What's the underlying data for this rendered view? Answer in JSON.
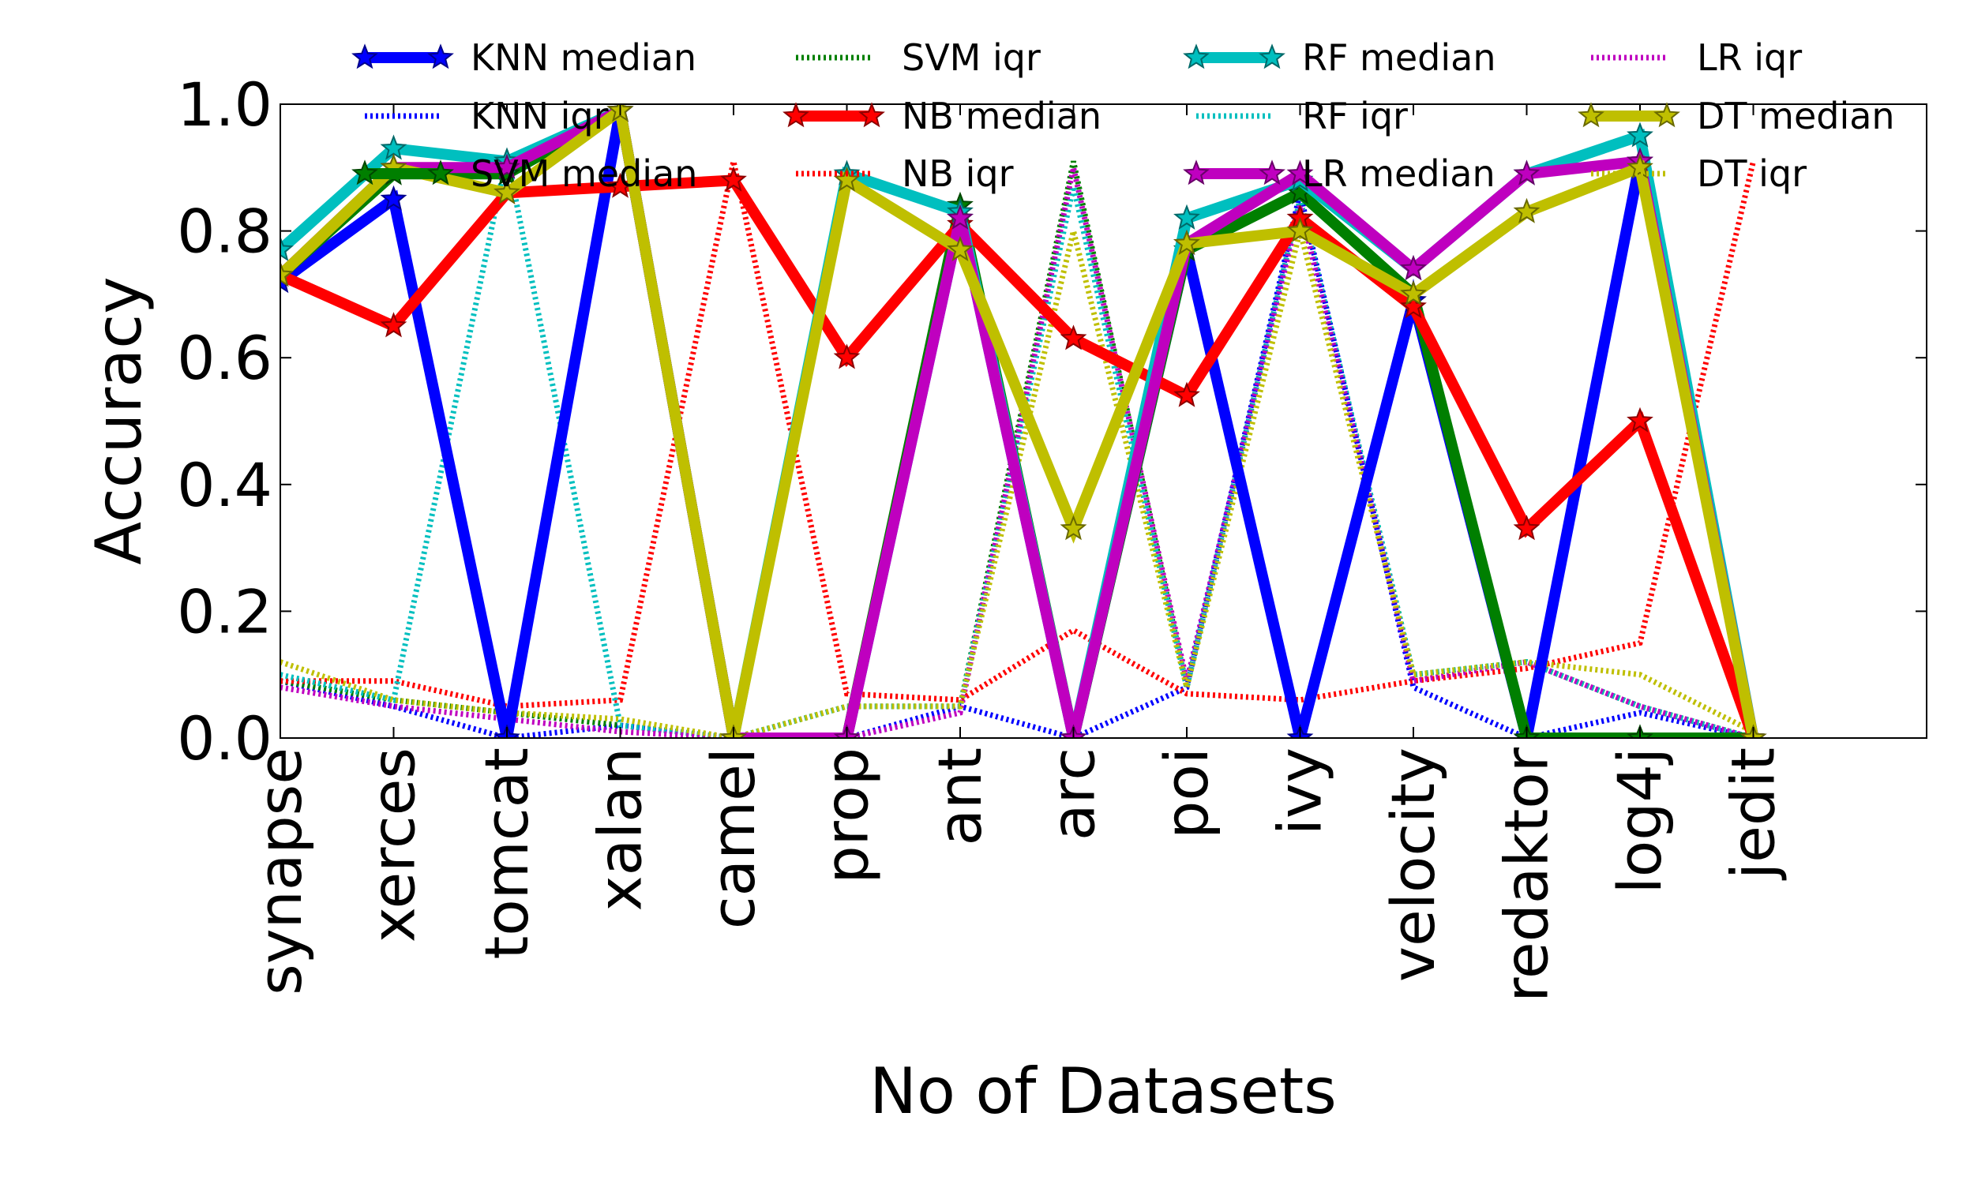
{
  "chart_data": {
    "type": "line",
    "xlabel": "No of Datasets",
    "ylabel": "Accuracy",
    "ylim": [
      0.0,
      1.0
    ],
    "yticks": [
      "0.0",
      "0.2",
      "0.4",
      "0.6",
      "0.8",
      "1.0"
    ],
    "categories": [
      "synapse",
      "xerces",
      "tomcat",
      "xalan",
      "camel",
      "prop",
      "ant",
      "arc",
      "poi",
      "ivy",
      "velocity",
      "redaktor",
      "log4j",
      "jedit"
    ],
    "grid": false,
    "legend_placement": "top, 4 columns",
    "series": [
      {
        "name": "KNN median",
        "color": "#0000ff",
        "style": "solid",
        "marker": "star",
        "values": [
          0.72,
          0.85,
          0.0,
          0.99,
          0.0,
          0.0,
          0.82,
          0.0,
          0.77,
          0.0,
          0.69,
          0.0,
          0.91,
          0.0
        ]
      },
      {
        "name": "KNN iqr",
        "color": "#0000ff",
        "style": "dotted",
        "values": [
          0.09,
          0.05,
          0.0,
          0.02,
          0.0,
          0.0,
          0.05,
          0.0,
          0.08,
          0.86,
          0.08,
          0.0,
          0.04,
          0.0
        ]
      },
      {
        "name": "SVM median",
        "color": "#007f00",
        "style": "solid",
        "marker": "star",
        "values": [
          0.73,
          0.89,
          0.89,
          0.99,
          0.0,
          0.0,
          0.84,
          0.0,
          0.77,
          0.86,
          0.7,
          0.0,
          0.0,
          0.0
        ]
      },
      {
        "name": "SVM iqr",
        "color": "#007f00",
        "style": "dotted",
        "values": [
          0.09,
          0.06,
          0.04,
          0.02,
          0.0,
          0.05,
          0.05,
          0.91,
          0.08,
          0.85,
          0.1,
          0.12,
          0.05,
          0.0
        ]
      },
      {
        "name": "NB median",
        "color": "#ff0000",
        "style": "solid",
        "marker": "star",
        "values": [
          0.73,
          0.65,
          0.86,
          0.87,
          0.88,
          0.6,
          0.81,
          0.63,
          0.54,
          0.82,
          0.68,
          0.33,
          0.5,
          0.0
        ]
      },
      {
        "name": "NB iqr",
        "color": "#ff0000",
        "style": "dotted",
        "values": [
          0.09,
          0.09,
          0.05,
          0.06,
          0.91,
          0.07,
          0.06,
          0.17,
          0.07,
          0.06,
          0.09,
          0.11,
          0.15,
          0.91
        ]
      },
      {
        "name": "RF median",
        "color": "#00bfbf",
        "style": "solid",
        "marker": "star",
        "values": [
          0.77,
          0.93,
          0.91,
          0.99,
          0.0,
          0.89,
          0.83,
          0.0,
          0.82,
          0.88,
          0.74,
          0.89,
          0.95,
          0.0
        ]
      },
      {
        "name": "RF iqr",
        "color": "#00bfbf",
        "style": "dotted",
        "values": [
          0.1,
          0.06,
          0.92,
          0.02,
          0.0,
          0.05,
          0.05,
          0.87,
          0.08,
          0.85,
          0.1,
          0.12,
          0.05,
          0.0
        ]
      },
      {
        "name": "LR median",
        "color": "#bf00bf",
        "style": "solid",
        "marker": "star",
        "values": [
          0.73,
          0.9,
          0.9,
          0.99,
          0.0,
          0.0,
          0.82,
          0.0,
          0.78,
          0.89,
          0.74,
          0.89,
          0.91,
          0.0
        ]
      },
      {
        "name": "LR iqr",
        "color": "#bf00bf",
        "style": "dotted",
        "values": [
          0.08,
          0.05,
          0.03,
          0.01,
          0.0,
          0.0,
          0.04,
          0.9,
          0.09,
          0.84,
          0.09,
          0.12,
          0.05,
          0.0
        ]
      },
      {
        "name": "DT median",
        "color": "#bfbf00",
        "style": "solid",
        "marker": "star",
        "values": [
          0.73,
          0.9,
          0.86,
          0.99,
          0.0,
          0.88,
          0.77,
          0.33,
          0.78,
          0.8,
          0.7,
          0.83,
          0.9,
          0.0
        ]
      },
      {
        "name": "DT iqr",
        "color": "#bfbf00",
        "style": "dotted",
        "values": [
          0.12,
          0.06,
          0.04,
          0.03,
          0.0,
          0.05,
          0.05,
          0.8,
          0.08,
          0.8,
          0.1,
          0.12,
          0.1,
          0.01
        ]
      }
    ]
  }
}
